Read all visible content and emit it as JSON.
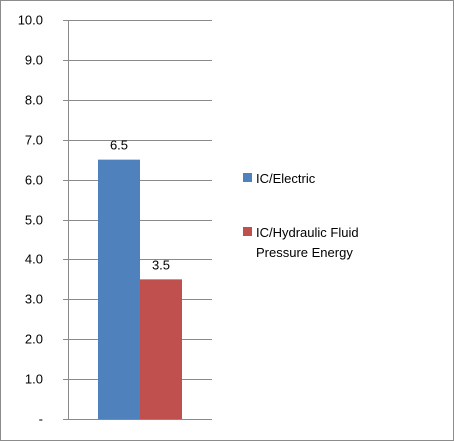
{
  "chart_data": {
    "type": "bar",
    "categories": [
      ""
    ],
    "series": [
      {
        "name": "IC/Electric",
        "values": [
          6.5
        ],
        "color": "#4F81BD"
      },
      {
        "name": "IC/Hydraulic Fluid Pressure Energy",
        "values": [
          3.5
        ],
        "color": "#C0504D"
      }
    ],
    "data_labels": [
      "6.5",
      "3.5"
    ],
    "ylim": [
      0,
      10
    ],
    "y_ticks": [
      {
        "value": 0,
        "label": "-"
      },
      {
        "value": 1,
        "label": "1.0"
      },
      {
        "value": 2,
        "label": "2.0"
      },
      {
        "value": 3,
        "label": "3.0"
      },
      {
        "value": 4,
        "label": "4.0"
      },
      {
        "value": 5,
        "label": "5.0"
      },
      {
        "value": 6,
        "label": "6.0"
      },
      {
        "value": 7,
        "label": "7.0"
      },
      {
        "value": 8,
        "label": "8.0"
      },
      {
        "value": 9,
        "label": "9.0"
      },
      {
        "value": 10,
        "label": "10.0"
      }
    ],
    "legend": {
      "placement": "right",
      "entries": [
        {
          "lines": [
            "IC/Electric"
          ],
          "color": "#4F81BD"
        },
        {
          "lines": [
            "IC/Hydraulic Fluid",
            "Pressure Energy"
          ],
          "color": "#C0504D"
        }
      ]
    },
    "grid": true,
    "title": "",
    "xlabel": "",
    "ylabel": ""
  }
}
